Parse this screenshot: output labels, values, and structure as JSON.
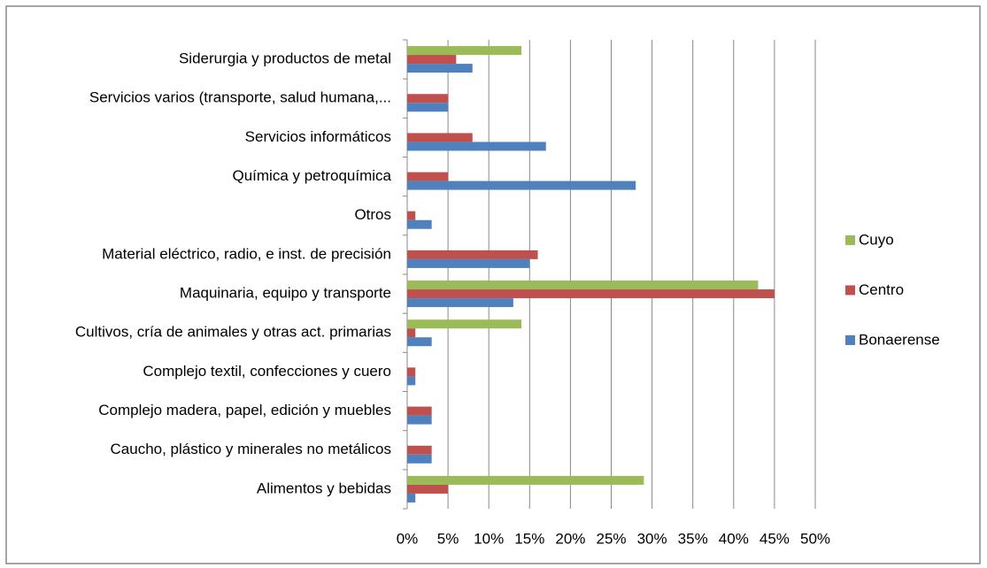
{
  "chart_data": {
    "type": "bar",
    "orientation": "horizontal",
    "categories": [
      "Siderurgia y productos de metal",
      "Servicios varios (transporte, salud humana,...",
      "Servicios informáticos",
      "Química y petroquímica",
      "Otros",
      "Material eléctrico, radio, e inst. de precisión",
      "Maquinaria, equipo y transporte",
      "Cultivos, cría de animales y otras act. primarias",
      "Complejo textil, confecciones y cuero",
      "Complejo madera, papel, edición y muebles",
      "Caucho, plástico y minerales no metálicos",
      "Alimentos y bebidas"
    ],
    "series": [
      {
        "name": "Cuyo",
        "color": "#9bbb59",
        "values": [
          14,
          0,
          0,
          0,
          0,
          0,
          43,
          14,
          0,
          0,
          0,
          29
        ]
      },
      {
        "name": "Centro",
        "color": "#c0504d",
        "values": [
          6,
          5,
          8,
          5,
          1,
          16,
          45,
          1,
          1,
          3,
          3,
          5
        ]
      },
      {
        "name": "Bonaerense",
        "color": "#4f81bd",
        "values": [
          8,
          5,
          17,
          28,
          3,
          15,
          13,
          3,
          1,
          3,
          3,
          1
        ]
      }
    ],
    "xlim": [
      0,
      50
    ],
    "xticks": [
      {
        "value": 0,
        "label": "0%"
      },
      {
        "value": 5,
        "label": "5%"
      },
      {
        "value": 10,
        "label": "10%"
      },
      {
        "value": 15,
        "label": "15%"
      },
      {
        "value": 20,
        "label": "20%"
      },
      {
        "value": 25,
        "label": "25%"
      },
      {
        "value": 30,
        "label": "30%"
      },
      {
        "value": 35,
        "label": "35%"
      },
      {
        "value": 40,
        "label": "40%"
      },
      {
        "value": 45,
        "label": "45%"
      },
      {
        "value": 50,
        "label": "50%"
      }
    ],
    "grid": true,
    "legend": "right"
  }
}
